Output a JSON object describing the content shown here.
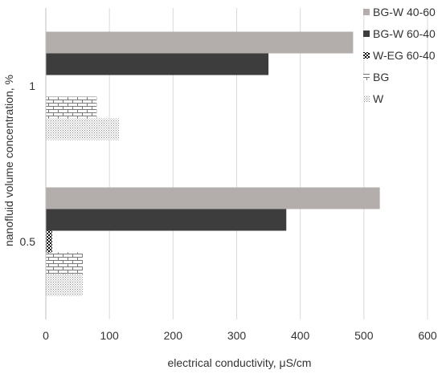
{
  "chart_data": {
    "type": "bar",
    "orientation": "horizontal",
    "categories": [
      "1",
      "0.5"
    ],
    "series": [
      {
        "name": "BG-W 40-60",
        "values": [
          483,
          525
        ],
        "color": "#b3aeab",
        "pattern": "solid"
      },
      {
        "name": "BG-W 60-40",
        "values": [
          350,
          378
        ],
        "color": "#3d3d3d",
        "pattern": "solid"
      },
      {
        "name": "W-EG 60-40",
        "values": [
          null,
          10
        ],
        "color": "#111111",
        "pattern": "checker"
      },
      {
        "name": "BG",
        "values": [
          80,
          58
        ],
        "color": "#888888",
        "pattern": "brick"
      },
      {
        "name": "W",
        "values": [
          115,
          58
        ],
        "color": "#999999",
        "pattern": "dots"
      }
    ],
    "xlabel": "electrical conductivity, μS/cm",
    "ylabel": "nanofluid volume concentration, %",
    "xlim": [
      0,
      600
    ],
    "xticks": [
      "0",
      "100",
      "200",
      "300",
      "400",
      "500",
      "600"
    ],
    "grid": "vertical",
    "legend_position": "right"
  }
}
